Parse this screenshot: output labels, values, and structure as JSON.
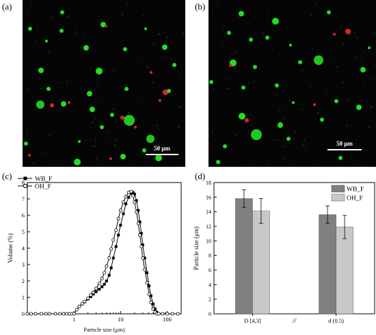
{
  "panels": {
    "a": {
      "label": "(a)",
      "scalebar": "50 μm"
    },
    "b": {
      "label": "(b)",
      "scalebar": "50 μm"
    },
    "c": {
      "label": "(c)"
    },
    "d": {
      "label": "(d)"
    }
  },
  "colors": {
    "green_particle": "#22dd22",
    "red_particle": "#dd2222",
    "micrograph_bg": "#050505",
    "bar_dark": "#808080",
    "bar_light": "#c8c8c8"
  },
  "chart_data": [
    {
      "type": "line",
      "panel": "c",
      "xlabel": "Particle size (μm)",
      "ylabel": "Volume (%)",
      "xscale": "log",
      "xlim": [
        0.1,
        200
      ],
      "ylim": [
        0,
        8
      ],
      "xticks": [
        "1",
        "10",
        "100"
      ],
      "yticks": [
        "0",
        "1",
        "2",
        "3",
        "4",
        "5",
        "6",
        "7",
        "8"
      ],
      "legend_position": "top-left",
      "series": [
        {
          "name": "WB_F",
          "marker": "filled-square",
          "points": [
            [
              0.1,
              0
            ],
            [
              0.12,
              0
            ],
            [
              0.15,
              0
            ],
            [
              0.2,
              0
            ],
            [
              0.25,
              0
            ],
            [
              0.3,
              0
            ],
            [
              0.4,
              0
            ],
            [
              0.5,
              0
            ],
            [
              0.6,
              0
            ],
            [
              0.7,
              0
            ],
            [
              0.8,
              0
            ],
            [
              0.9,
              0
            ],
            [
              1.0,
              0
            ],
            [
              1.15,
              0.25
            ],
            [
              1.3,
              0.45
            ],
            [
              1.5,
              0.6
            ],
            [
              1.7,
              0.72
            ],
            [
              2.0,
              0.9
            ],
            [
              2.3,
              1.05
            ],
            [
              2.6,
              1.2
            ],
            [
              3.0,
              1.35
            ],
            [
              3.5,
              1.5
            ],
            [
              4.0,
              1.65
            ],
            [
              4.5,
              1.8
            ],
            [
              5.0,
              2.0
            ],
            [
              5.7,
              2.35
            ],
            [
              6.3,
              2.8
            ],
            [
              7.0,
              3.4
            ],
            [
              8.0,
              4.1
            ],
            [
              9.0,
              4.8
            ],
            [
              10.0,
              5.4
            ],
            [
              11.5,
              6.1
            ],
            [
              13.0,
              6.7
            ],
            [
              15.0,
              7.1
            ],
            [
              17.0,
              7.35
            ],
            [
              18.5,
              7.4
            ],
            [
              20.0,
              7.3
            ],
            [
              22.0,
              6.9
            ],
            [
              24.0,
              6.3
            ],
            [
              26.0,
              5.6
            ],
            [
              28.0,
              4.9
            ],
            [
              30.0,
              4.2
            ],
            [
              33.0,
              3.4
            ],
            [
              37.0,
              2.5
            ],
            [
              41.0,
              1.7
            ],
            [
              45.0,
              1.1
            ],
            [
              50.0,
              0.6
            ],
            [
              55.0,
              0.3
            ],
            [
              60.0,
              0.1
            ],
            [
              66.0,
              0
            ],
            [
              80.0,
              0
            ],
            [
              100.0,
              0
            ],
            [
              130.0,
              0
            ],
            [
              170.0,
              0
            ]
          ]
        },
        {
          "name": "OH_F",
          "marker": "open-circle",
          "points": [
            [
              0.1,
              0
            ],
            [
              0.12,
              0
            ],
            [
              0.15,
              0
            ],
            [
              0.2,
              0
            ],
            [
              0.25,
              0
            ],
            [
              0.3,
              0
            ],
            [
              0.4,
              0
            ],
            [
              0.5,
              0
            ],
            [
              0.6,
              0
            ],
            [
              0.7,
              0
            ],
            [
              0.8,
              0
            ],
            [
              0.9,
              0
            ],
            [
              1.0,
              0
            ],
            [
              1.15,
              0.25
            ],
            [
              1.3,
              0.45
            ],
            [
              1.5,
              0.62
            ],
            [
              1.7,
              0.75
            ],
            [
              2.0,
              0.95
            ],
            [
              2.3,
              1.15
            ],
            [
              2.6,
              1.3
            ],
            [
              3.0,
              1.55
            ],
            [
              3.5,
              1.85
            ],
            [
              4.0,
              2.15
            ],
            [
              4.5,
              2.5
            ],
            [
              5.0,
              2.9
            ],
            [
              5.7,
              3.4
            ],
            [
              6.3,
              3.95
            ],
            [
              7.0,
              4.5
            ],
            [
              8.0,
              5.1
            ],
            [
              9.0,
              5.8
            ],
            [
              10.0,
              6.3
            ],
            [
              11.5,
              6.8
            ],
            [
              13.0,
              7.15
            ],
            [
              15.0,
              7.4
            ],
            [
              17.0,
              7.45
            ],
            [
              18.5,
              7.2
            ],
            [
              20.0,
              6.8
            ],
            [
              22.0,
              6.2
            ],
            [
              24.0,
              5.5
            ],
            [
              26.0,
              4.8
            ],
            [
              28.0,
              4.1
            ],
            [
              30.0,
              3.4
            ],
            [
              33.0,
              2.7
            ],
            [
              37.0,
              1.9
            ],
            [
              41.0,
              1.2
            ],
            [
              45.0,
              0.7
            ],
            [
              50.0,
              0.3
            ],
            [
              55.0,
              0.1
            ],
            [
              60.0,
              0
            ],
            [
              66.0,
              0
            ],
            [
              80.0,
              0
            ],
            [
              100.0,
              0
            ],
            [
              130.0,
              0
            ],
            [
              170.0,
              0
            ]
          ]
        }
      ]
    },
    {
      "type": "bar",
      "panel": "d",
      "ylabel": "Particle size (μm)",
      "xlabel": "",
      "ylim": [
        0,
        18
      ],
      "yticks": [
        "0",
        "2",
        "4",
        "6",
        "8",
        "10",
        "12",
        "14",
        "16",
        "18"
      ],
      "categories": [
        "D [4,3]",
        "d (0.5)"
      ],
      "axis_break_label": "//",
      "legend_position": "top-right",
      "series": [
        {
          "name": "WB_F",
          "values": [
            15.8,
            13.6
          ],
          "errors": [
            1.2,
            1.2
          ]
        },
        {
          "name": "OH_F",
          "values": [
            14.1,
            11.9
          ],
          "errors": [
            1.7,
            1.6
          ]
        }
      ]
    }
  ]
}
